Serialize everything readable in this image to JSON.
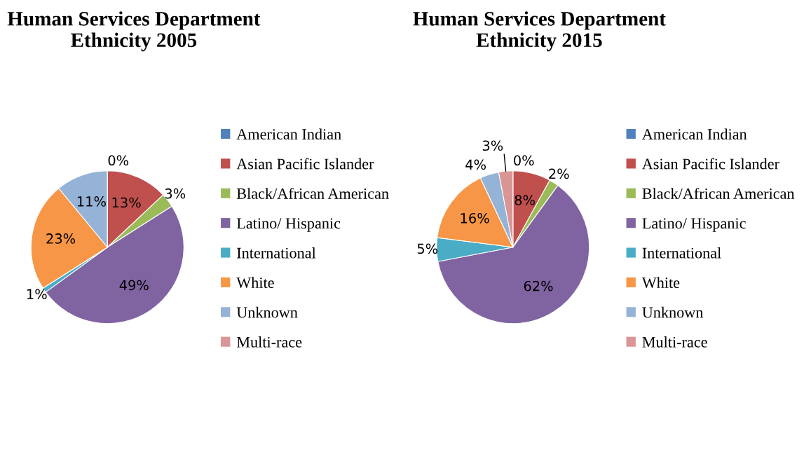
{
  "chart_data": [
    {
      "type": "pie",
      "title": "Human Services Department\nEthnicity 2005",
      "categories": [
        "American Indian",
        "Asian Pacific Islander",
        "Black/African American",
        "Latino/ Hispanic",
        "International",
        "White",
        "Unknown",
        "Multi-race"
      ],
      "values": [
        0,
        13,
        3,
        49,
        1,
        23,
        11,
        0
      ],
      "colors": [
        "#4f81bd",
        "#c0504d",
        "#9bbb59",
        "#8064a2",
        "#4bacc6",
        "#f79646",
        "#95b3d7",
        "#d99694"
      ],
      "value_labels": [
        "0%",
        "13%",
        "3%",
        "49%",
        "1%",
        "23%",
        "11%",
        null
      ],
      "legend": "right"
    },
    {
      "type": "pie",
      "title": "Human Services Department\nEthnicity 2015",
      "categories": [
        "American Indian",
        "Asian Pacific Islander",
        "Black/African American",
        "Latino/ Hispanic",
        "International",
        "White",
        "Unknown",
        "Multi-race"
      ],
      "values": [
        0,
        8,
        2,
        62,
        5,
        16,
        4,
        3
      ],
      "colors": [
        "#4f81bd",
        "#c0504d",
        "#9bbb59",
        "#8064a2",
        "#4bacc6",
        "#f79646",
        "#95b3d7",
        "#d99694"
      ],
      "value_labels": [
        "0%",
        "8%",
        "2%",
        "62%",
        "5%",
        "16%",
        "4%",
        "3%"
      ],
      "legend": "right"
    }
  ]
}
